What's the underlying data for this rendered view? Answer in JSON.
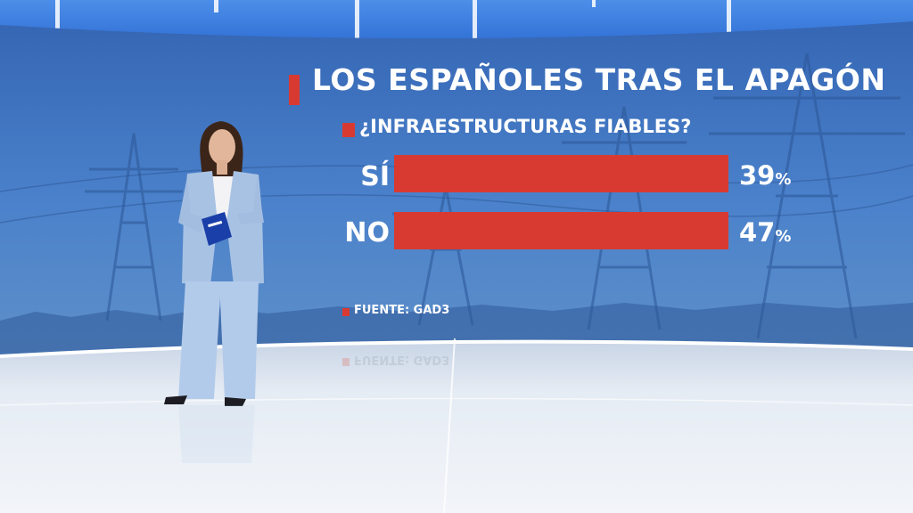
{
  "chart_data": {
    "type": "bar",
    "orientation": "horizontal",
    "title": "LOS ESPAÑOLES TRAS EL APAGÓN",
    "subtitle": "¿INFRAESTRUCTURAS FIABLES?",
    "categories": [
      "SÍ",
      "NO"
    ],
    "values": [
      39,
      47
    ],
    "value_labels": [
      "39",
      "47"
    ],
    "unit": "%",
    "source": "FUENTE: GAD3",
    "xlim": [
      0,
      100
    ],
    "bar_color": "#d83a32",
    "track_color": "#8fa9cc",
    "grid": false,
    "legend": "none"
  },
  "colors": {
    "wall_top": "#3767b3",
    "wall_bottom": "#4f86cc",
    "floor": "#e4eaf2",
    "accent": "#d83a32",
    "text": "#ffffff",
    "blazer": "#a8c2e4"
  },
  "scene": {
    "presenter_card_icon": "tablet-card-icon",
    "background_icon": "power-tower-icon"
  }
}
